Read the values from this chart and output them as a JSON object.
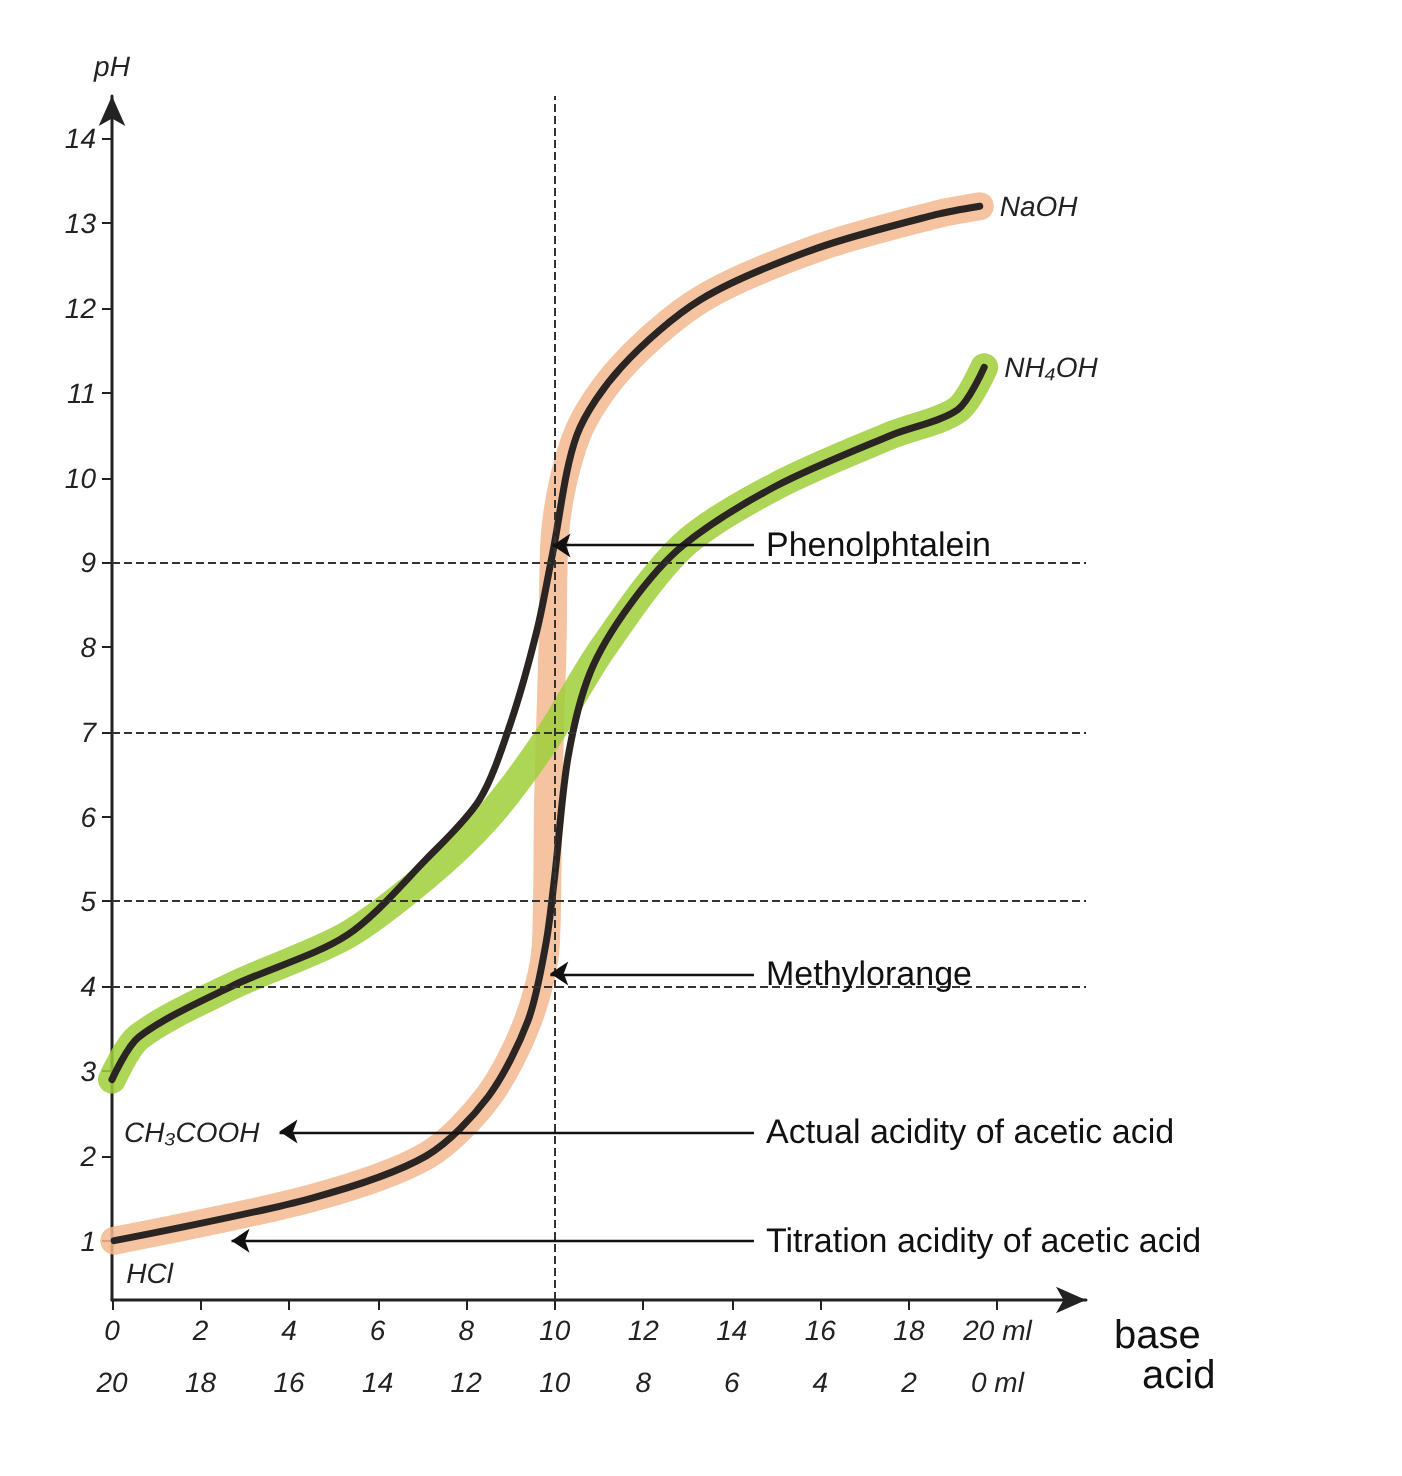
{
  "chart_data": {
    "type": "line",
    "ylabel": "pH",
    "xlabel": "base",
    "x2label": "acid",
    "xlim": [
      0,
      22
    ],
    "xticks": [
      0,
      2,
      4,
      6,
      8,
      10,
      12,
      14,
      16,
      18,
      {
        "value": 20,
        "label": "20 ml"
      }
    ],
    "x2lim": [
      20,
      -2
    ],
    "x2ticks": [
      {
        "value": 20,
        "label": "20"
      },
      18,
      16,
      14,
      12,
      10,
      8,
      6,
      4,
      2,
      {
        "value": 0,
        "label": "0 ml"
      }
    ],
    "ylim": [
      0.3,
      14.5
    ],
    "yticks": [
      1,
      2,
      3,
      4,
      5,
      6,
      7,
      8,
      9,
      10,
      11,
      12,
      13,
      14
    ],
    "grid": false,
    "marker": "none",
    "line_style": "solid",
    "series": [
      {
        "color": "#f3b98e",
        "x": [
          0.05,
          4.5,
          7.1,
          8.5,
          9.4,
          9.8,
          9.85,
          9.95,
          10.0,
          10.5,
          11.5,
          13.3,
          15.9,
          18.6,
          19.6
        ],
        "values": [
          1.0,
          1.5,
          2.0,
          2.7,
          3.6,
          4.5,
          6.2,
          8.0,
          9.3,
          10.5,
          11.3,
          12.1,
          12.7,
          13.1,
          13.2
        ]
      },
      {
        "color": "#9fcf3a",
        "x": [
          0,
          0.6,
          2.7,
          5.3,
          7.1,
          8.5,
          9.8,
          11.1,
          12.9,
          15.0,
          17.6,
          19.1,
          19.7
        ],
        "values": [
          2.9,
          3.4,
          4.0,
          4.6,
          5.3,
          6.0,
          6.9,
          8.0,
          9.2,
          9.9,
          10.5,
          10.8,
          11.3
        ]
      },
      {
        "color": "#2a2523",
        "x": [
          0,
          0.6,
          2.7,
          5.3,
          7.1,
          8.3,
          9.0,
          9.6,
          9.95,
          10.5,
          11.5,
          13.3,
          15.9,
          18.6,
          19.6
        ],
        "values": [
          2.9,
          3.4,
          4.0,
          4.6,
          5.5,
          6.2,
          7.1,
          8.2,
          9.1,
          10.5,
          11.3,
          12.1,
          12.7,
          13.1,
          13.2
        ]
      },
      {
        "color": "#2a2523",
        "x": [
          0.05,
          4.5,
          7.1,
          8.5,
          9.4,
          9.8,
          10.0,
          10.3,
          10.8,
          11.7,
          12.9,
          15.0,
          17.6,
          19.1,
          19.7
        ],
        "values": [
          1.0,
          1.5,
          2.0,
          2.7,
          3.6,
          4.5,
          5.3,
          6.7,
          7.7,
          8.5,
          9.2,
          9.9,
          10.5,
          10.8,
          11.3
        ]
      }
    ],
    "ref_lines": [
      {
        "axis": "y",
        "value": 9,
        "line_style": "dashed"
      },
      {
        "axis": "y",
        "value": 7,
        "line_style": "dashed"
      },
      {
        "axis": "y",
        "value": 5,
        "line_style": "dashed"
      },
      {
        "axis": "y",
        "value": 4,
        "line_style": "dashed"
      },
      {
        "axis": "x",
        "value": 10,
        "line_style": "dashed"
      }
    ],
    "annotations": [
      "NaOH",
      "NH₄OH",
      "CH₃COOH",
      "HCl",
      {
        "text": "Phenolphtalein",
        "x": 9.95,
        "y": 9.2
      },
      {
        "text": "Methylorange",
        "x": 9.9,
        "y": 4.15
      },
      "Actual acidity of acetic acid",
      {
        "text": "Titration acidity of acetic acid",
        "x": 2.7,
        "y": 1.0
      }
    ]
  }
}
